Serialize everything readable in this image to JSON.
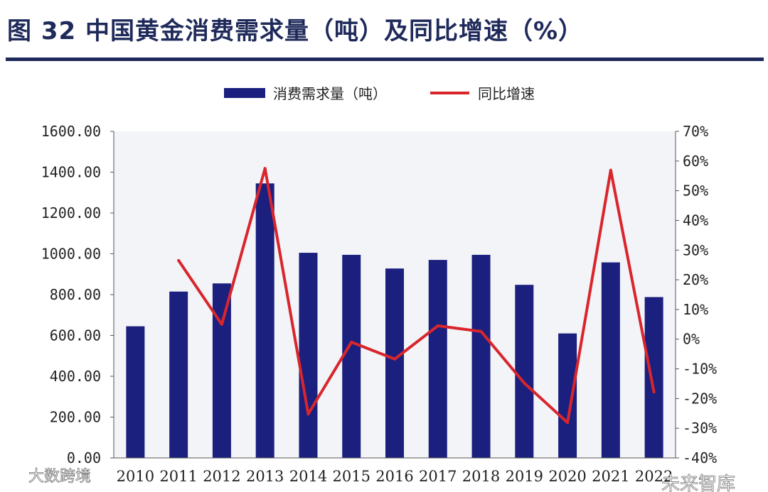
{
  "figure": {
    "title": "图 32 中国黄金消费需求量（吨）及同比增速（%）"
  },
  "chart_data": {
    "type": "bar+line",
    "categories": [
      "2010",
      "2011",
      "2012",
      "2013",
      "2014",
      "2015",
      "2016",
      "2017",
      "2018",
      "2019",
      "2020",
      "2021",
      "2022"
    ],
    "series": [
      {
        "name": "消费需求量（吨）",
        "kind": "bar",
        "axis": "left",
        "color": "#1b1f7e",
        "values": [
          645,
          815,
          855,
          1345,
          1005,
          995,
          928,
          970,
          995,
          848,
          610,
          958,
          788
        ]
      },
      {
        "name": "同比增速",
        "kind": "line",
        "axis": "right",
        "color": "#d8262c",
        "values": [
          null,
          26.5,
          5.0,
          57.5,
          -25.2,
          -1.0,
          -6.7,
          4.5,
          2.6,
          -14.8,
          -28.1,
          56.9,
          -17.8
        ]
      }
    ],
    "y_left": {
      "min": 0,
      "max": 1600,
      "step": 200,
      "tick_labels": [
        "0.00",
        "200.00",
        "400.00",
        "600.00",
        "800.00",
        "1000.00",
        "1200.00",
        "1400.00",
        "1600.00"
      ]
    },
    "y_right": {
      "min": -40,
      "max": 70,
      "step": 10,
      "tick_labels": [
        "-40%",
        "-30%",
        "-20%",
        "-10%",
        "0%",
        "10%",
        "20%",
        "30%",
        "40%",
        "50%",
        "60%",
        "70%"
      ]
    },
    "legend": {
      "position": "top",
      "entries": [
        "消费需求量（吨）",
        "同比增速"
      ]
    },
    "grid": false
  },
  "watermarks": {
    "left": "大数跨境",
    "right": "未来智库"
  }
}
